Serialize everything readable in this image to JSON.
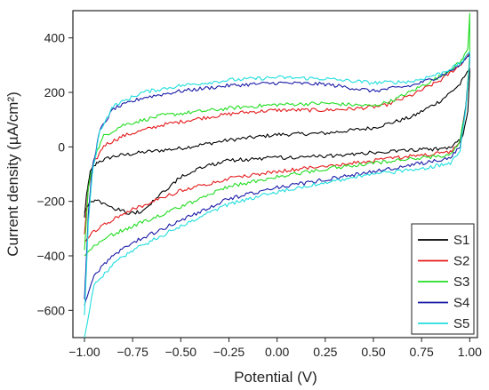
{
  "chart_data": {
    "type": "line",
    "title": "",
    "xlabel": "Potential (V)",
    "ylabel": "Current density (µA/cm²)",
    "xlim": [
      -1.06,
      1.04
    ],
    "ylim": [
      -700,
      500
    ],
    "x_ticks": [
      -1.0,
      -0.75,
      -0.5,
      -0.25,
      0.0,
      0.25,
      0.5,
      0.75,
      1.0
    ],
    "x_tick_labels": [
      "−1.00",
      "−0.75",
      "−0.50",
      "−0.25",
      "0.00",
      "0.25",
      "0.50",
      "0.75",
      "1.00"
    ],
    "y_ticks": [
      -600,
      -400,
      -200,
      0,
      200,
      400
    ],
    "y_tick_labels": [
      "−600",
      "−400",
      "−200",
      "0",
      "200",
      "400"
    ],
    "grid": false,
    "legend_position": "bottom-right",
    "series": [
      {
        "name": "S1",
        "color": "#000000",
        "forward": [
          [
            -1.0,
            -260
          ],
          [
            -0.99,
            -180
          ],
          [
            -0.97,
            -90
          ],
          [
            -0.93,
            -55
          ],
          [
            -0.85,
            -35
          ],
          [
            -0.7,
            -20
          ],
          [
            -0.5,
            -5
          ],
          [
            -0.25,
            25
          ],
          [
            0.0,
            45
          ],
          [
            0.25,
            50
          ],
          [
            0.5,
            70
          ],
          [
            0.7,
            110
          ],
          [
            0.85,
            170
          ],
          [
            0.95,
            230
          ],
          [
            1.0,
            290
          ]
        ],
        "reverse": [
          [
            1.0,
            270
          ],
          [
            0.99,
            130
          ],
          [
            0.96,
            30
          ],
          [
            0.9,
            -5
          ],
          [
            0.75,
            -10
          ],
          [
            0.5,
            -20
          ],
          [
            0.25,
            -35
          ],
          [
            0.0,
            -40
          ],
          [
            -0.25,
            -50
          ],
          [
            -0.4,
            -75
          ],
          [
            -0.5,
            -110
          ],
          [
            -0.6,
            -170
          ],
          [
            -0.7,
            -235
          ],
          [
            -0.76,
            -245
          ],
          [
            -0.85,
            -225
          ],
          [
            -0.92,
            -200
          ],
          [
            -0.97,
            -200
          ],
          [
            -1.0,
            -240
          ]
        ]
      },
      {
        "name": "S2",
        "color": "#e41a1c",
        "forward": [
          [
            -1.0,
            -320
          ],
          [
            -0.98,
            -150
          ],
          [
            -0.95,
            -60
          ],
          [
            -0.9,
            5
          ],
          [
            -0.8,
            40
          ],
          [
            -0.6,
            80
          ],
          [
            -0.4,
            105
          ],
          [
            -0.2,
            125
          ],
          [
            0.0,
            135
          ],
          [
            0.25,
            135
          ],
          [
            0.4,
            140
          ],
          [
            0.55,
            150
          ],
          [
            0.7,
            190
          ],
          [
            0.85,
            245
          ],
          [
            0.95,
            300
          ],
          [
            1.0,
            345
          ]
        ],
        "reverse": [
          [
            1.0,
            310
          ],
          [
            0.98,
            150
          ],
          [
            0.95,
            20
          ],
          [
            0.9,
            -20
          ],
          [
            0.75,
            -30
          ],
          [
            0.5,
            -50
          ],
          [
            0.25,
            -70
          ],
          [
            0.0,
            -90
          ],
          [
            -0.25,
            -115
          ],
          [
            -0.5,
            -160
          ],
          [
            -0.75,
            -230
          ],
          [
            -0.85,
            -265
          ],
          [
            -0.95,
            -310
          ],
          [
            -1.0,
            -350
          ]
        ]
      },
      {
        "name": "S3",
        "color": "#22dd22",
        "forward": [
          [
            -1.0,
            -380
          ],
          [
            -0.98,
            -150
          ],
          [
            -0.95,
            -40
          ],
          [
            -0.9,
            40
          ],
          [
            -0.8,
            80
          ],
          [
            -0.6,
            115
          ],
          [
            -0.4,
            130
          ],
          [
            -0.2,
            145
          ],
          [
            0.0,
            155
          ],
          [
            0.25,
            160
          ],
          [
            0.5,
            150
          ],
          [
            0.6,
            170
          ],
          [
            0.7,
            205
          ],
          [
            0.85,
            260
          ],
          [
            0.95,
            310
          ],
          [
            0.99,
            360
          ],
          [
            1.0,
            490
          ]
        ],
        "reverse": [
          [
            1.0,
            340
          ],
          [
            0.98,
            150
          ],
          [
            0.95,
            20
          ],
          [
            0.9,
            -30
          ],
          [
            0.75,
            -40
          ],
          [
            0.5,
            -60
          ],
          [
            0.25,
            -80
          ],
          [
            0.0,
            -110
          ],
          [
            -0.25,
            -145
          ],
          [
            -0.5,
            -220
          ],
          [
            -0.75,
            -290
          ],
          [
            -0.85,
            -320
          ],
          [
            -0.95,
            -360
          ],
          [
            -1.0,
            -400
          ]
        ]
      },
      {
        "name": "S4",
        "color": "#1a1aa8",
        "forward": [
          [
            -1.0,
            -560
          ],
          [
            -0.98,
            -250
          ],
          [
            -0.96,
            -80
          ],
          [
            -0.92,
            60
          ],
          [
            -0.85,
            140
          ],
          [
            -0.7,
            180
          ],
          [
            -0.5,
            205
          ],
          [
            -0.25,
            225
          ],
          [
            0.0,
            235
          ],
          [
            0.25,
            230
          ],
          [
            0.5,
            205
          ],
          [
            0.7,
            225
          ],
          [
            0.85,
            260
          ],
          [
            0.95,
            300
          ],
          [
            1.0,
            340
          ]
        ],
        "reverse": [
          [
            1.0,
            320
          ],
          [
            0.98,
            150
          ],
          [
            0.95,
            0
          ],
          [
            0.9,
            -40
          ],
          [
            0.75,
            -60
          ],
          [
            0.5,
            -90
          ],
          [
            0.25,
            -120
          ],
          [
            0.0,
            -150
          ],
          [
            -0.25,
            -190
          ],
          [
            -0.5,
            -270
          ],
          [
            -0.75,
            -350
          ],
          [
            -0.85,
            -400
          ],
          [
            -0.95,
            -470
          ],
          [
            -1.0,
            -580
          ]
        ]
      },
      {
        "name": "S5",
        "color": "#22dddd",
        "forward": [
          [
            -1.0,
            -620
          ],
          [
            -0.98,
            -280
          ],
          [
            -0.96,
            -100
          ],
          [
            -0.92,
            60
          ],
          [
            -0.85,
            150
          ],
          [
            -0.7,
            200
          ],
          [
            -0.5,
            225
          ],
          [
            -0.25,
            245
          ],
          [
            0.0,
            255
          ],
          [
            0.25,
            250
          ],
          [
            0.5,
            235
          ],
          [
            0.7,
            240
          ],
          [
            0.85,
            270
          ],
          [
            0.95,
            305
          ],
          [
            1.0,
            350
          ]
        ],
        "reverse": [
          [
            1.0,
            320
          ],
          [
            0.98,
            140
          ],
          [
            0.95,
            -10
          ],
          [
            0.9,
            -60
          ],
          [
            0.75,
            -80
          ],
          [
            0.5,
            -100
          ],
          [
            0.25,
            -130
          ],
          [
            0.0,
            -165
          ],
          [
            -0.25,
            -210
          ],
          [
            -0.5,
            -290
          ],
          [
            -0.75,
            -380
          ],
          [
            -0.85,
            -430
          ],
          [
            -0.95,
            -510
          ],
          [
            -1.0,
            -700
          ]
        ]
      }
    ]
  }
}
